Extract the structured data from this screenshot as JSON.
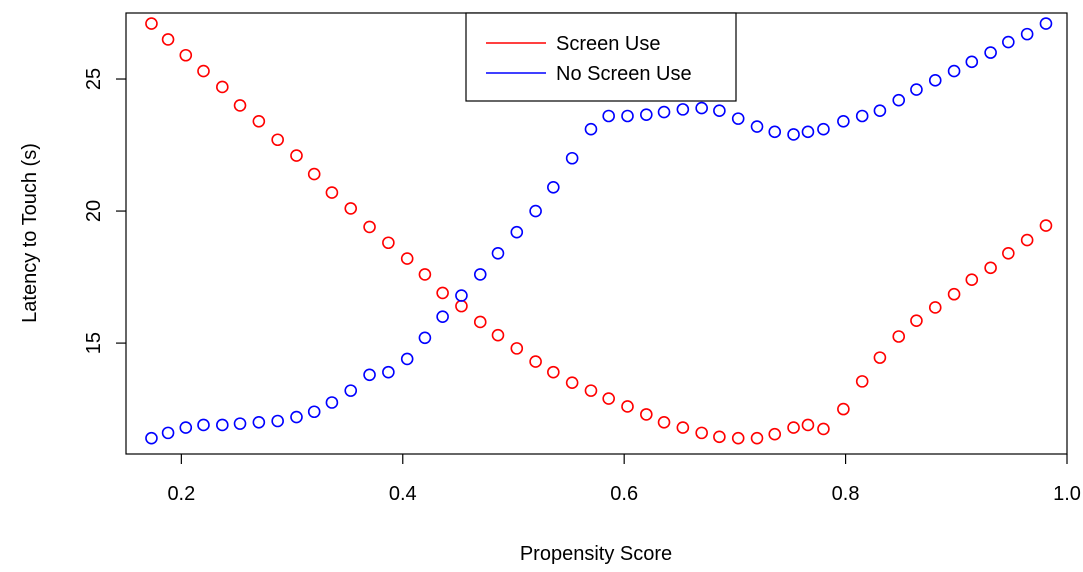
{
  "chart_data": {
    "type": "scatter",
    "xlabel": "Propensity Score",
    "ylabel": "Latency to Touch (s)",
    "xlim": [
      0.15,
      1.0
    ],
    "ylim": [
      10.8,
      27.5
    ],
    "x_ticks": [
      {
        "value": 0.2,
        "label": "0.2"
      },
      {
        "value": 0.4,
        "label": "0.4"
      },
      {
        "value": 0.6,
        "label": "0.6"
      },
      {
        "value": 0.8,
        "label": "0.8"
      },
      {
        "value": 1.0,
        "label": "1.0"
      }
    ],
    "y_ticks": [
      {
        "value": 15,
        "label": "15"
      },
      {
        "value": 20,
        "label": "20"
      },
      {
        "value": 25,
        "label": "25"
      }
    ],
    "grid": false,
    "legend_position": "top-center",
    "series": [
      {
        "name": "Screen Use",
        "color": "#ff0000",
        "marker": "open-circle",
        "x": [
          0.173,
          0.188,
          0.204,
          0.22,
          0.237,
          0.253,
          0.27,
          0.287,
          0.304,
          0.32,
          0.336,
          0.353,
          0.37,
          0.387,
          0.404,
          0.42,
          0.436,
          0.453,
          0.47,
          0.486,
          0.503,
          0.52,
          0.536,
          0.553,
          0.57,
          0.586,
          0.603,
          0.62,
          0.636,
          0.653,
          0.67,
          0.686,
          0.703,
          0.72,
          0.736,
          0.753,
          0.766,
          0.78,
          0.798,
          0.815,
          0.831,
          0.848,
          0.864,
          0.881,
          0.898,
          0.914,
          0.931,
          0.947,
          0.964,
          0.981
        ],
        "y": [
          27.1,
          26.5,
          25.9,
          25.3,
          24.7,
          24.0,
          23.4,
          22.7,
          22.1,
          21.4,
          20.7,
          20.1,
          19.4,
          18.8,
          18.2,
          17.6,
          16.9,
          16.4,
          15.8,
          15.3,
          14.8,
          14.3,
          13.9,
          13.5,
          13.2,
          12.9,
          12.6,
          12.3,
          12.0,
          11.8,
          11.6,
          11.45,
          11.4,
          11.4,
          11.55,
          11.8,
          11.9,
          11.75,
          12.5,
          13.55,
          14.45,
          15.25,
          15.85,
          16.35,
          16.85,
          17.4,
          17.85,
          18.4,
          18.9,
          19.45
        ]
      },
      {
        "name": "No Screen Use",
        "color": "#0000ff",
        "marker": "open-circle",
        "x": [
          0.173,
          0.188,
          0.204,
          0.22,
          0.237,
          0.253,
          0.27,
          0.287,
          0.304,
          0.32,
          0.336,
          0.353,
          0.37,
          0.387,
          0.404,
          0.42,
          0.436,
          0.453,
          0.47,
          0.486,
          0.503,
          0.52,
          0.536,
          0.553,
          0.57,
          0.586,
          0.603,
          0.62,
          0.636,
          0.653,
          0.67,
          0.686,
          0.703,
          0.72,
          0.736,
          0.753,
          0.766,
          0.78,
          0.798,
          0.815,
          0.831,
          0.848,
          0.864,
          0.881,
          0.898,
          0.914,
          0.931,
          0.947,
          0.964,
          0.981
        ],
        "y": [
          11.4,
          11.6,
          11.8,
          11.9,
          11.9,
          11.95,
          12.0,
          12.05,
          12.2,
          12.4,
          12.75,
          13.2,
          13.8,
          13.9,
          14.4,
          15.2,
          16.0,
          16.8,
          17.6,
          18.4,
          19.2,
          20.0,
          20.9,
          22.0,
          23.1,
          23.6,
          23.6,
          23.65,
          23.75,
          23.85,
          23.9,
          23.8,
          23.5,
          23.2,
          23.0,
          22.9,
          23.0,
          23.1,
          23.4,
          23.6,
          23.8,
          24.2,
          24.6,
          24.95,
          25.3,
          25.65,
          26.0,
          26.4,
          26.7,
          27.1
        ]
      }
    ]
  }
}
